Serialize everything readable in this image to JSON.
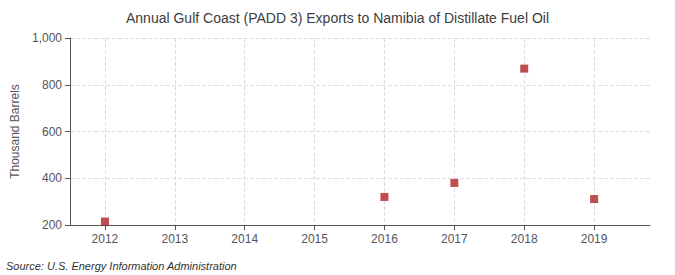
{
  "chart_data": {
    "type": "scatter",
    "title": "Annual Gulf Coast (PADD 3) Exports to Namibia of Distillate Fuel Oil",
    "ylabel": "Thousand Barrels",
    "annotations": [
      "Source: U.S. Energy Information Administration"
    ],
    "x": [
      2012,
      2016,
      2017,
      2018,
      2019
    ],
    "values": [
      215,
      320,
      380,
      869,
      311
    ],
    "color": "#b22222",
    "marker": "square",
    "xlim": [
      2011.5,
      2019.8
    ],
    "xticks": [
      2012,
      2013,
      2014,
      2015,
      2016,
      2017,
      2018,
      2019
    ],
    "ylim": [
      200,
      1000
    ],
    "yticks": [
      200,
      400,
      600,
      800,
      {
        "value": 1000,
        "label": "1,000"
      }
    ],
    "grid": true
  }
}
